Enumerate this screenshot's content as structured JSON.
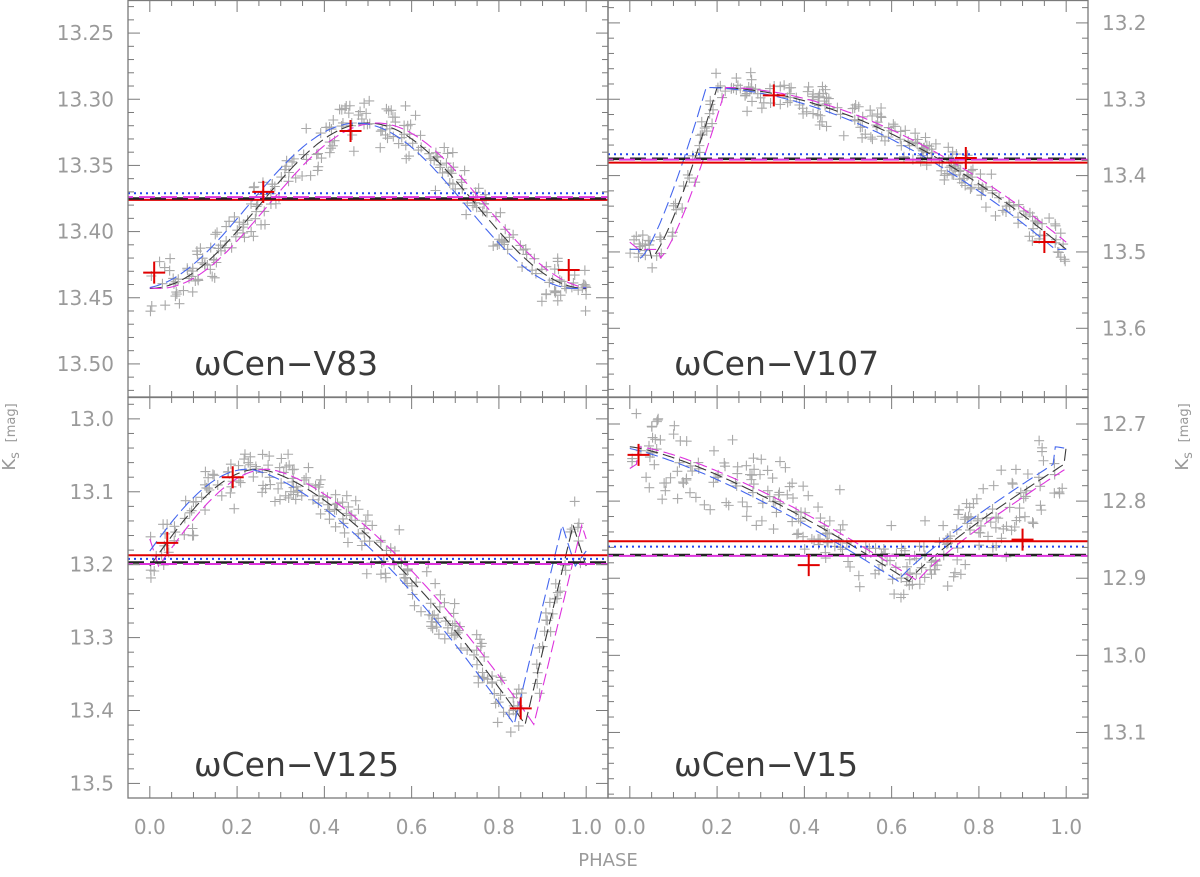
{
  "figure": {
    "xlabel": "PHASE",
    "ylabel_left": "K",
    "ylabel_left_sub": "s",
    "ylabel_left_unit": "[mag]",
    "ylabel_right": "K",
    "ylabel_right_sub": "s",
    "ylabel_right_unit": "[mag]"
  },
  "chart_data": [
    {
      "type": "scatter",
      "panel": "top-left",
      "label": "ωCen−V83",
      "xlim": [
        -0.05,
        1.05
      ],
      "ylim": [
        13.525,
        13.225
      ],
      "y_inverted": true,
      "xticks": [
        "0.0",
        "0.2",
        "0.4",
        "0.6",
        "0.8",
        "1.0"
      ],
      "yticks": [
        "13.25",
        "13.30",
        "13.35",
        "13.40",
        "13.45",
        "13.50"
      ],
      "ytick_values": [
        13.25,
        13.3,
        13.35,
        13.4,
        13.45,
        13.5
      ],
      "yaxis_side": "left",
      "template_shape": "hump",
      "template_amplitude": 0.1,
      "template_peak_phase": 0.5,
      "template_min_phase": 0.0,
      "obs_scatter": 0.017,
      "key_points": [
        {
          "phase": 0.01,
          "mag": 13.431
        },
        {
          "phase": 0.26,
          "mag": 13.37
        },
        {
          "phase": 0.46,
          "mag": 13.324
        },
        {
          "phase": 0.96,
          "mag": 13.429
        }
      ],
      "mean_lines": {
        "solid_red": 13.376,
        "dashed_black": 13.375,
        "dashed_magenta": 13.374,
        "dotted_blue": 13.371
      }
    },
    {
      "type": "scatter",
      "panel": "top-right",
      "label": "ωCen−V107",
      "xlim": [
        -0.05,
        1.05
      ],
      "ylim": [
        13.69,
        13.17
      ],
      "y_inverted": true,
      "xticks": [
        "0.0",
        "0.2",
        "0.4",
        "0.6",
        "0.8",
        "1.0"
      ],
      "yticks": [
        "13.2",
        "13.3",
        "13.4",
        "13.5",
        "13.6"
      ],
      "ytick_values": [
        13.2,
        13.3,
        13.4,
        13.5,
        13.6
      ],
      "yaxis_side": "right",
      "template_shape": "rrab",
      "obs_scatter": 0.02,
      "key_points": [
        {
          "phase": 0.33,
          "mag": 13.295
        },
        {
          "phase": 0.77,
          "mag": 13.377
        },
        {
          "phase": 0.95,
          "mag": 13.487
        }
      ],
      "mean_lines": {
        "solid_red": 13.383,
        "dashed_black": 13.378,
        "dashed_magenta": 13.379,
        "dotted_blue": 13.372
      }
    },
    {
      "type": "scatter",
      "panel": "bottom-left",
      "label": "ωCen−V125",
      "xlim": [
        -0.05,
        1.05
      ],
      "ylim": [
        13.52,
        12.97
      ],
      "y_inverted": true,
      "xticks": [
        "0.0",
        "0.2",
        "0.4",
        "0.6",
        "0.8",
        "1.0"
      ],
      "yticks": [
        "13.0",
        "13.1",
        "13.2",
        "13.3",
        "13.4",
        "13.5"
      ],
      "ytick_values": [
        13.0,
        13.1,
        13.2,
        13.3,
        13.4,
        13.5
      ],
      "yaxis_side": "left",
      "template_shape": "dip-late",
      "obs_scatter": 0.035,
      "key_points": [
        {
          "phase": 0.04,
          "mag": 13.17
        },
        {
          "phase": 0.19,
          "mag": 13.08
        },
        {
          "phase": 0.85,
          "mag": 13.397
        }
      ],
      "mean_lines": {
        "solid_red": 13.187,
        "dashed_black": 13.197,
        "dashed_magenta": 13.199,
        "dotted_blue": 13.192
      }
    },
    {
      "type": "scatter",
      "panel": "bottom-right",
      "label": "ωCen−V15",
      "xlim": [
        -0.05,
        1.05
      ],
      "ylim": [
        13.185,
        12.665
      ],
      "y_inverted": true,
      "xticks": [
        "0.0",
        "0.2",
        "0.4",
        "0.6",
        "0.8",
        "1.0"
      ],
      "yticks": [
        "12.7",
        "12.8",
        "12.9",
        "13.0",
        "13.1"
      ],
      "ytick_values": [
        12.7,
        12.8,
        12.9,
        13.0,
        13.1
      ],
      "yaxis_side": "right",
      "template_shape": "dip-mid",
      "obs_scatter": 0.045,
      "key_points": [
        {
          "phase": 0.02,
          "mag": 12.74
        },
        {
          "phase": 0.41,
          "mag": 12.883
        },
        {
          "phase": 0.9,
          "mag": 12.85
        }
      ],
      "mean_lines": {
        "solid_red": 12.852,
        "dashed_black": 12.87,
        "dashed_magenta": 12.871,
        "dotted_blue": 12.859
      }
    }
  ]
}
